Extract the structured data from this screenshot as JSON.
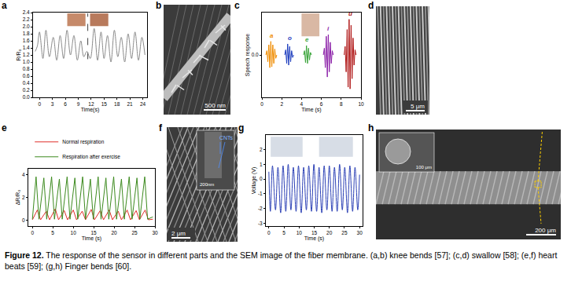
{
  "chart_data": [
    {
      "panel": "a",
      "type": "line",
      "line_style": "smooth",
      "x_label": "Time(s)",
      "y_label": "R/R₀",
      "xlim": [
        -1.5,
        25
      ],
      "xticks": [
        0,
        3,
        6,
        9,
        12,
        15,
        18,
        21,
        24
      ],
      "ylim": [
        0,
        2.4
      ],
      "yticks": [
        {
          "value": 0,
          "label": "0.0"
        },
        0.2,
        0.4,
        0.6,
        0.8,
        {
          "value": 1,
          "label": "1.0"
        },
        1.2,
        1.4,
        1.6,
        1.8,
        {
          "value": 2,
          "label": "2.0"
        },
        2.2,
        2.4
      ],
      "series": [
        {
          "color": "#8a8a8a",
          "x": [
            -1,
            -0.5,
            0,
            0.8,
            1.5,
            2.3,
            3.2,
            4,
            4.8,
            5.6,
            6.4,
            7.2,
            8,
            8.8,
            9.6,
            10.3,
            11,
            11.8,
            12.7,
            13.5,
            14.3,
            15,
            15.8,
            16.6,
            17.4,
            18.2,
            19,
            19.8,
            20.6,
            21.4,
            22.2,
            23,
            23.8,
            24.5
          ],
          "values": [
            1.3,
            1.45,
            1.85,
            1.1,
            1.9,
            1.15,
            1.7,
            1.05,
            1.75,
            1.1,
            1.9,
            1.2,
            1.75,
            1.05,
            1.6,
            1.15,
            1.3,
            1.1,
            1.95,
            1.05,
            1.85,
            1.1,
            1.75,
            1.0,
            1.9,
            1.15,
            1.7,
            1.0,
            1.8,
            1.1,
            1.85,
            1.05,
            1.7,
            1.2
          ]
        }
      ]
    },
    {
      "panel": "c",
      "type": "line",
      "line_style": "solid",
      "x_label": "Time (s)",
      "y_label": "Speech response",
      "xlim": [
        0,
        10
      ],
      "xticks": [
        0,
        2,
        4,
        6,
        8,
        10
      ],
      "ylim": [
        -0.5,
        0.5
      ],
      "yticks": [
        {
          "value": 0,
          "label": "0.0"
        }
      ],
      "series": [
        {
          "name": "a",
          "color": "#f08c00",
          "x": [
            0.4,
            0.5,
            0.6,
            0.7,
            0.8,
            0.9,
            1.0,
            1.1,
            1.2,
            1.3,
            1.4,
            1.5
          ],
          "values": [
            0,
            0.05,
            -0.08,
            0.12,
            -0.15,
            0.16,
            -0.14,
            0.12,
            -0.1,
            0.07,
            -0.04,
            0
          ]
        },
        {
          "name": "o",
          "color": "#1f3fbf",
          "x": [
            2.3,
            2.4,
            2.5,
            2.6,
            2.7,
            2.8,
            2.9,
            3.0,
            3.1,
            3.2
          ],
          "values": [
            0,
            0.06,
            -0.1,
            0.13,
            -0.12,
            0.1,
            -0.08,
            0.05,
            -0.03,
            0
          ]
        },
        {
          "name": "e",
          "color": "#3aa53a",
          "x": [
            4.2,
            4.3,
            4.4,
            4.5,
            4.6,
            4.7,
            4.8,
            4.9,
            5.0
          ],
          "values": [
            0,
            0.05,
            -0.09,
            0.11,
            -0.1,
            0.08,
            -0.06,
            0.03,
            0
          ]
        },
        {
          "name": "i",
          "color": "#8b1fa8",
          "x": [
            6.2,
            6.3,
            6.4,
            6.5,
            6.6,
            6.7,
            6.8,
            6.9,
            7.0,
            7.1,
            7.2
          ],
          "values": [
            0,
            0.08,
            -0.15,
            0.22,
            -0.26,
            0.24,
            -0.2,
            0.15,
            -0.1,
            0.05,
            0
          ]
        },
        {
          "name": "u",
          "color": "#b01515",
          "x": [
            8.3,
            8.4,
            8.5,
            8.6,
            8.7,
            8.8,
            8.9,
            9.0,
            9.1,
            9.2,
            9.3,
            9.4,
            9.5
          ],
          "values": [
            0,
            0.1,
            -0.2,
            0.3,
            -0.38,
            0.42,
            -0.4,
            0.35,
            -0.28,
            0.2,
            -0.12,
            0.06,
            0
          ]
        }
      ]
    },
    {
      "panel": "e",
      "type": "line",
      "line_style": "solid",
      "legend": "top",
      "x_label": "Time (s)",
      "y_label": "ΔR/R₀",
      "xlim": [
        -1,
        30
      ],
      "xticks": [
        0,
        5,
        10,
        15,
        20,
        25,
        30
      ],
      "ylim": [
        -0.5,
        4.5
      ],
      "yticks": [
        0,
        2,
        4
      ],
      "series": [
        {
          "name": "Normal respiration",
          "color": "#e0302a",
          "x": [
            0,
            1.2,
            2,
            3.4,
            4.2,
            5.6,
            6.4,
            7.8,
            8.6,
            10,
            10.8,
            12.2,
            13,
            14.4,
            15.2,
            16.6,
            17.4,
            18.8,
            19.6,
            21,
            21.8,
            23.2,
            24,
            25.4,
            26.2,
            27.6,
            28.4,
            29.5
          ],
          "values": [
            0.05,
            0.9,
            0.05,
            0.8,
            0.05,
            1.0,
            0.05,
            0.85,
            0.05,
            0.9,
            0.05,
            0.8,
            0.05,
            0.95,
            0.05,
            0.85,
            0.05,
            0.9,
            0.05,
            0.8,
            0.05,
            0.9,
            0.05,
            0.85,
            0.05,
            0.9,
            0.05,
            0.1
          ]
        },
        {
          "name": "Respiration after exercise",
          "color": "#3c8a1e",
          "x": [
            0,
            0.9,
            1.6,
            2.8,
            3.5,
            4.7,
            5.4,
            6.6,
            7.3,
            8.5,
            9.2,
            10.4,
            11.1,
            12.3,
            13,
            14.2,
            14.9,
            16.1,
            16.8,
            18,
            18.7,
            19.9,
            20.6,
            21.8,
            22.5,
            23.7,
            24.4,
            25.6,
            26.3,
            27.5,
            28.2,
            29.5
          ],
          "values": [
            0.1,
            3.8,
            0.1,
            3.7,
            0.1,
            3.8,
            0.1,
            3.6,
            0.1,
            3.8,
            0.1,
            3.7,
            0.1,
            3.8,
            0.1,
            3.6,
            0.1,
            3.8,
            0.1,
            3.7,
            0.1,
            3.8,
            0.1,
            3.6,
            0.1,
            3.8,
            0.1,
            3.7,
            0.1,
            3.8,
            0.1,
            0.3
          ]
        }
      ]
    },
    {
      "panel": "g",
      "type": "line",
      "line_style": "smooth",
      "x_label": "Time (s)",
      "y_label": "Voltage (V)",
      "xlim": [
        -1,
        31
      ],
      "xticks": [
        0,
        5,
        10,
        15,
        20,
        25,
        30
      ],
      "ylim": [
        -3.2,
        3
      ],
      "yticks": [
        -3,
        -2,
        -1,
        0,
        1,
        2
      ],
      "series": [
        {
          "color": "#2a3fb5",
          "x": [
            0,
            0.5,
            1.2,
            2.2,
            3,
            3.9,
            4.7,
            5.6,
            6.4,
            7.3,
            8.1,
            9,
            9.8,
            10.7,
            11.5,
            12.4,
            13.2,
            14.1,
            14.9,
            15.8,
            16.6,
            17.5,
            18.3,
            19.2,
            20,
            20.9,
            21.7,
            22.6,
            23.4,
            24.3,
            25.1,
            26,
            26.8,
            27.7,
            28.5,
            29.4,
            30
          ],
          "values": [
            0.5,
            -2.2,
            0.9,
            -2.1,
            0.8,
            -2.3,
            0.9,
            -2.2,
            1.0,
            -2.1,
            0.8,
            -2.2,
            0.9,
            -2.3,
            0.8,
            -2.1,
            0.9,
            -2.2,
            1.0,
            -2.2,
            0.8,
            -2.3,
            0.9,
            -2.1,
            0.9,
            -2.2,
            0.8,
            -2.2,
            1.0,
            -2.1,
            0.8,
            -2.3,
            0.9,
            -2.2,
            0.8,
            -2.1,
            0.3
          ]
        }
      ]
    }
  ],
  "images": [
    {
      "panel": "b",
      "scale_bar": "500 nm"
    },
    {
      "panel": "d",
      "scale_bar": "5 μm"
    },
    {
      "panel": "f",
      "scale_bar": "2 μm",
      "inset_scale_bar": "200nm",
      "annotation": "CNTs"
    },
    {
      "panel": "h",
      "scale_bar": "200 μm",
      "inset_scale_bar": "100 μm"
    }
  ],
  "caption": {
    "label": "Figure 12.",
    "text": "The response of the sensor in different parts and the SEM image of the fiber membrane. (a,b) knee bends [57]; (c,d) swallow [58]; (e,f) heart beats [59]; (g,h) Finger bends [60]."
  }
}
